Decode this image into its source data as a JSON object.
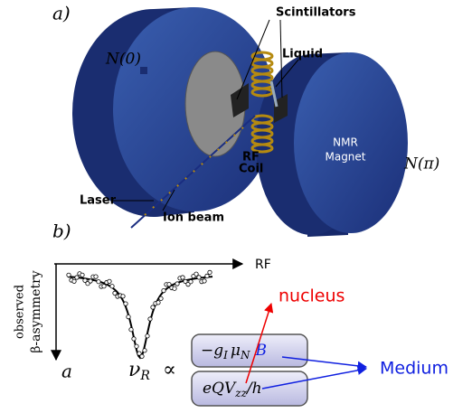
{
  "panel_a": {
    "label": "a)",
    "scintillators": "Scintillators",
    "liquid": "Liquid",
    "n0": "N(0)",
    "npi": "N(π)",
    "magnet": [
      "NMR",
      "Magnet"
    ],
    "coil": [
      "RF",
      "Coil"
    ],
    "laser": "Laser",
    "ion_beam": "Ion beam"
  },
  "panel_b": {
    "label": "b)",
    "x_axis": "RF",
    "y_axis": [
      "observed",
      "β-asymmetry"
    ],
    "a": "a",
    "nu": [
      "ν",
      "R"
    ],
    "prop": "∝",
    "term1": [
      "−g",
      "I",
      "μ",
      "N",
      "B"
    ],
    "term2": [
      "eQV",
      "zz",
      "/h"
    ],
    "nucleus": "nucleus",
    "medium": "Medium"
  }
}
